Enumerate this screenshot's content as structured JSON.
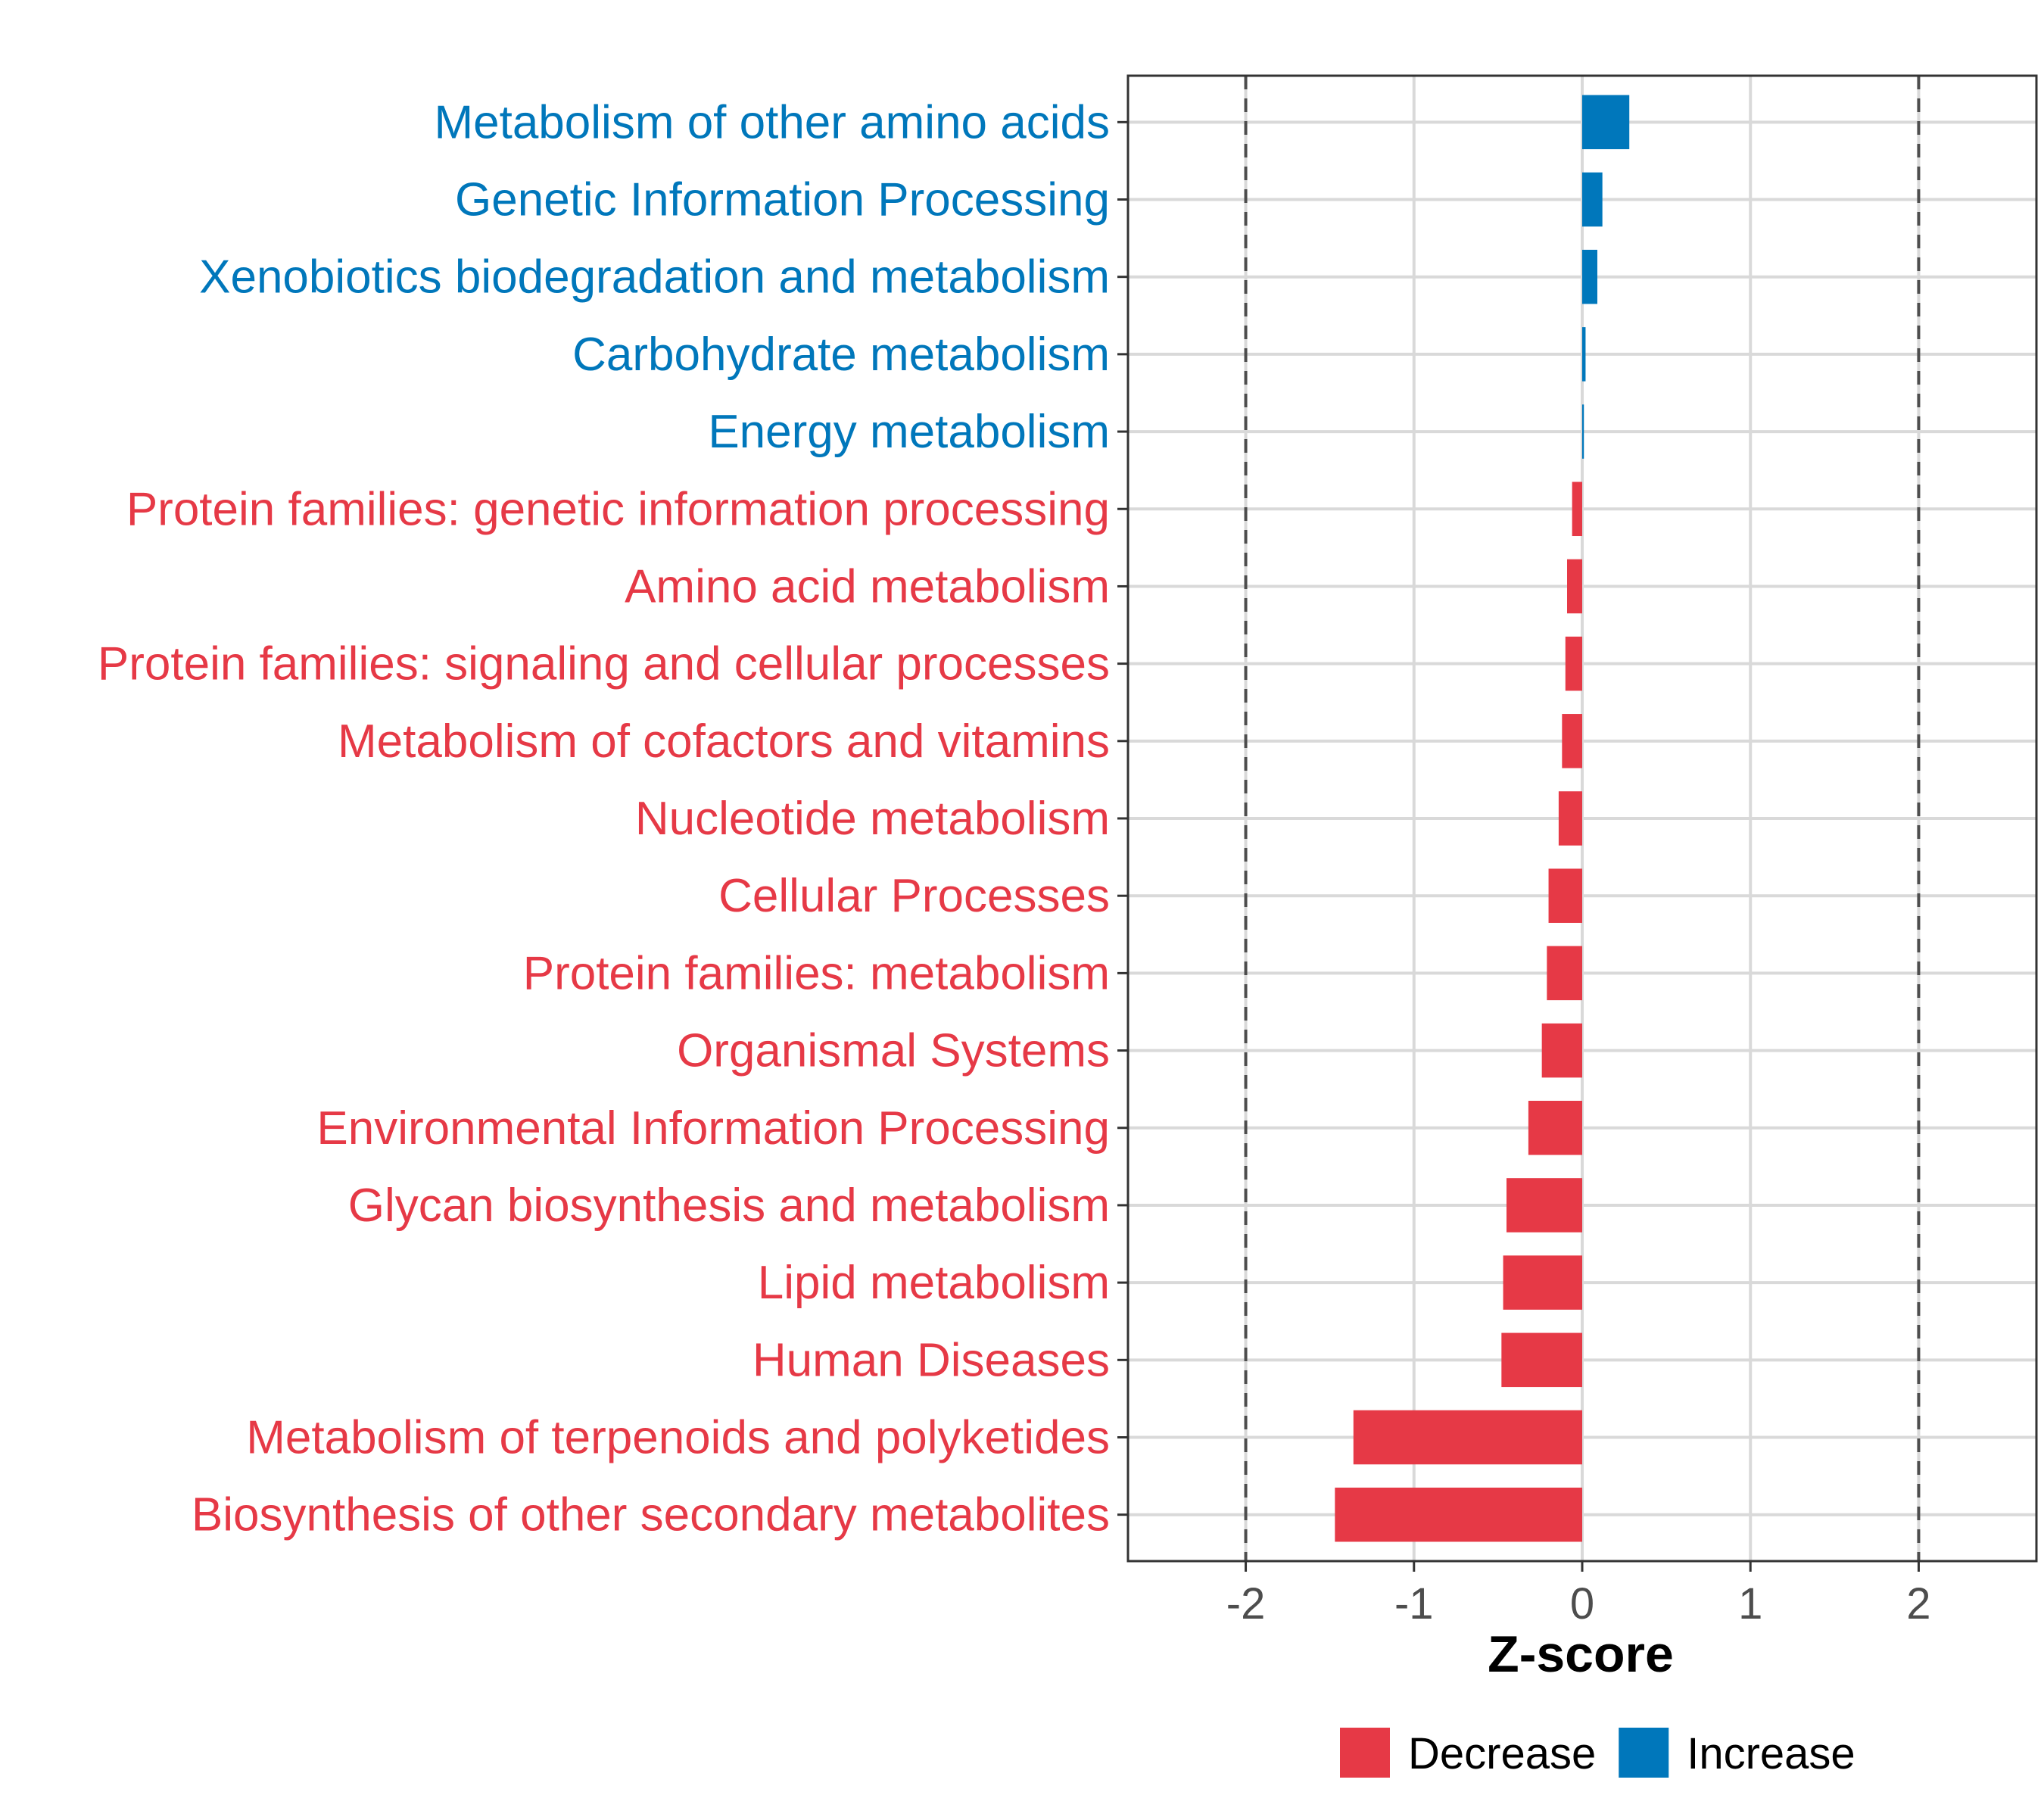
{
  "chart_data": {
    "type": "bar",
    "orientation": "horizontal",
    "title": "",
    "xlabel": "Z-score",
    "ylabel": "",
    "xlim": [
      -2.7,
      2.7
    ],
    "xticks": [
      -2,
      -1,
      0,
      1,
      2
    ],
    "xtick_labels": [
      "-2",
      "-1",
      "0",
      "1",
      "2"
    ],
    "reference_lines": [
      -2,
      2
    ],
    "grid": true,
    "legend_position": "bottom",
    "legend": [
      {
        "key": "Decrease",
        "label": "Decrease",
        "color": "#E63946"
      },
      {
        "key": "Increase",
        "label": "Increase",
        "color": "#0077BB"
      }
    ],
    "categories": [
      "Metabolism of other amino acids",
      "Genetic Information Processing",
      "Xenobiotics biodegradation and metabolism",
      "Carbohydrate metabolism",
      "Energy metabolism",
      "Protein families: genetic information processing",
      "Amino acid metabolism",
      "Protein families: signaling and cellular processes",
      "Metabolism of cofactors and vitamins",
      "Nucleotide metabolism",
      "Cellular Processes",
      "Protein families: metabolism",
      "Organismal Systems",
      "Environmental Information Processing",
      "Glycan biosynthesis and metabolism",
      "Lipid metabolism",
      "Human Diseases",
      "Metabolism of terpenoids and polyketides",
      "Biosynthesis of other secondary metabolites"
    ],
    "values": [
      0.28,
      0.12,
      0.09,
      0.02,
      0.01,
      -0.06,
      -0.09,
      -0.1,
      -0.12,
      -0.14,
      -0.2,
      -0.21,
      -0.24,
      -0.32,
      -0.45,
      -0.47,
      -0.48,
      -1.36,
      -1.47
    ],
    "groups": [
      "Increase",
      "Increase",
      "Increase",
      "Increase",
      "Increase",
      "Decrease",
      "Decrease",
      "Decrease",
      "Decrease",
      "Decrease",
      "Decrease",
      "Decrease",
      "Decrease",
      "Decrease",
      "Decrease",
      "Decrease",
      "Decrease",
      "Decrease",
      "Decrease"
    ]
  }
}
